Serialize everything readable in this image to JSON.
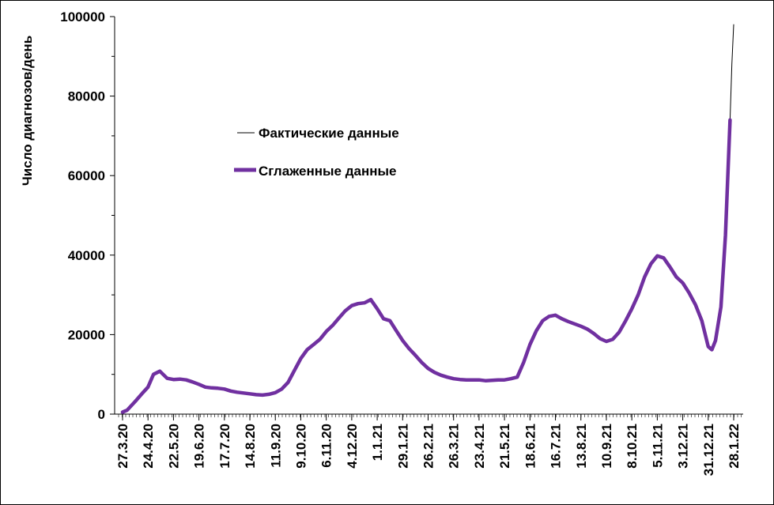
{
  "chart_data": {
    "type": "line",
    "ylabel": "Число диагнозов/день",
    "xlabel": "",
    "ylim": [
      0,
      100000
    ],
    "yticks": [
      0,
      20000,
      40000,
      60000,
      80000,
      100000
    ],
    "x_tick_labels": [
      "27.3.20",
      "24.4.20",
      "22.5.20",
      "19.6.20",
      "17.7.20",
      "14.8.20",
      "11.9.20",
      "9.10.20",
      "6.11.20",
      "4.12.20",
      "1.1.21",
      "29.1.21",
      "26.2.21",
      "26.3.21",
      "23.4.21",
      "21.5.21",
      "18.6.21",
      "16.7.21",
      "13.8.21",
      "10.9.21",
      "8.10.21",
      "5.11.21",
      "3.12.21",
      "31.12.21",
      "28.1.22"
    ],
    "x_start": "27.3.20",
    "x_end": "28.1.22",
    "grid": false,
    "legend": "left-upper-inside",
    "series": [
      {
        "name": "Фактические данные",
        "color": "#000000",
        "style": "thin",
        "points": [
          [
            "27.3.20",
            500
          ],
          [
            "1.4.20",
            800
          ],
          [
            "10.4.20",
            3500
          ],
          [
            "18.4.20",
            5500
          ],
          [
            "24.4.20",
            6500
          ],
          [
            "30.4.20",
            10000
          ],
          [
            "7.5.20",
            11000
          ],
          [
            "15.5.20",
            9000
          ],
          [
            "22.5.20",
            8800
          ],
          [
            "29.5.20",
            8900
          ],
          [
            "5.6.20",
            8600
          ],
          [
            "12.6.20",
            8200
          ],
          [
            "19.6.20",
            7500
          ],
          [
            "26.6.20",
            6800
          ],
          [
            "3.7.20",
            6700
          ],
          [
            "10.7.20",
            6600
          ],
          [
            "17.7.20",
            6400
          ],
          [
            "24.7.20",
            5900
          ],
          [
            "31.7.20",
            5600
          ],
          [
            "7.8.20",
            5300
          ],
          [
            "14.8.20",
            5100
          ],
          [
            "21.8.20",
            4900
          ],
          [
            "28.8.20",
            4800
          ],
          [
            "4.9.20",
            5000
          ],
          [
            "11.9.20",
            5300
          ],
          [
            "18.9.20",
            6200
          ],
          [
            "25.9.20",
            7500
          ],
          [
            "2.10.20",
            10500
          ],
          [
            "9.10.20",
            14000
          ],
          [
            "16.10.20",
            16000
          ],
          [
            "23.10.20",
            17500
          ],
          [
            "30.10.20",
            18500
          ],
          [
            "6.11.20",
            20500
          ],
          [
            "13.11.20",
            22000
          ],
          [
            "20.11.20",
            24000
          ],
          [
            "27.11.20",
            26000
          ],
          [
            "4.12.20",
            27500
          ],
          [
            "11.12.20",
            28000
          ],
          [
            "18.12.20",
            28200
          ],
          [
            "25.12.20",
            29000
          ],
          [
            "1.1.21",
            26000
          ],
          [
            "8.1.21",
            24000
          ],
          [
            "15.1.21",
            23500
          ],
          [
            "22.1.21",
            21000
          ],
          [
            "29.1.21",
            18500
          ],
          [
            "5.2.21",
            16500
          ],
          [
            "12.2.21",
            14800
          ],
          [
            "19.2.21",
            13000
          ],
          [
            "26.2.21",
            11500
          ],
          [
            "5.3.21",
            10500
          ],
          [
            "12.3.21",
            9800
          ],
          [
            "19.3.21",
            9300
          ],
          [
            "26.3.21",
            8900
          ],
          [
            "2.4.21",
            8700
          ],
          [
            "9.4.21",
            8600
          ],
          [
            "16.4.21",
            8700
          ],
          [
            "23.4.21",
            8600
          ],
          [
            "30.4.21",
            8400
          ],
          [
            "7.5.21",
            8600
          ],
          [
            "14.5.21",
            8700
          ],
          [
            "21.5.21",
            8600
          ],
          [
            "28.5.21",
            9000
          ],
          [
            "4.6.21",
            9200
          ],
          [
            "11.6.21",
            13000
          ],
          [
            "18.6.21",
            17500
          ],
          [
            "25.6.21",
            21000
          ],
          [
            "2.7.21",
            23500
          ],
          [
            "9.7.21",
            24800
          ],
          [
            "16.7.21",
            25000
          ],
          [
            "23.7.21",
            24000
          ],
          [
            "30.7.21",
            23300
          ],
          [
            "6.8.21",
            22700
          ],
          [
            "13.8.21",
            22100
          ],
          [
            "20.8.21",
            21400
          ],
          [
            "27.8.21",
            20300
          ],
          [
            "3.9.21",
            19000
          ],
          [
            "10.9.21",
            18300
          ],
          [
            "17.9.21",
            18800
          ],
          [
            "24.9.21",
            20700
          ],
          [
            "1.10.21",
            23500
          ],
          [
            "8.10.21",
            26500
          ],
          [
            "15.10.21",
            30000
          ],
          [
            "22.10.21",
            34500
          ],
          [
            "29.10.21",
            38000
          ],
          [
            "5.11.21",
            40000
          ],
          [
            "12.11.21",
            39500
          ],
          [
            "19.11.21",
            37000
          ],
          [
            "26.11.21",
            34500
          ],
          [
            "3.12.21",
            33000
          ],
          [
            "10.12.21",
            30500
          ],
          [
            "17.12.21",
            27500
          ],
          [
            "24.12.21",
            23500
          ],
          [
            "31.12.21",
            17000
          ],
          [
            "4.1.22",
            16000
          ],
          [
            "8.1.22",
            18000
          ],
          [
            "14.1.22",
            27000
          ],
          [
            "19.1.22",
            45000
          ],
          [
            "24.1.22",
            74000
          ],
          [
            "26.1.22",
            88000
          ],
          [
            "28.1.22",
            98000
          ]
        ]
      },
      {
        "name": "Сглаженные данные",
        "color": "#7030A0",
        "style": "thick",
        "points": [
          [
            "27.3.20",
            500
          ],
          [
            "1.4.20",
            1000
          ],
          [
            "10.4.20",
            3200
          ],
          [
            "18.4.20",
            5300
          ],
          [
            "24.4.20",
            6800
          ],
          [
            "30.4.20",
            10000
          ],
          [
            "7.5.20",
            10800
          ],
          [
            "15.5.20",
            9000
          ],
          [
            "22.5.20",
            8700
          ],
          [
            "29.5.20",
            8800
          ],
          [
            "5.6.20",
            8600
          ],
          [
            "12.6.20",
            8100
          ],
          [
            "19.6.20",
            7500
          ],
          [
            "26.6.20",
            6800
          ],
          [
            "3.7.20",
            6600
          ],
          [
            "10.7.20",
            6500
          ],
          [
            "17.7.20",
            6300
          ],
          [
            "24.7.20",
            5800
          ],
          [
            "31.7.20",
            5500
          ],
          [
            "7.8.20",
            5300
          ],
          [
            "14.8.20",
            5100
          ],
          [
            "21.8.20",
            4900
          ],
          [
            "28.8.20",
            4800
          ],
          [
            "4.9.20",
            5000
          ],
          [
            "11.9.20",
            5400
          ],
          [
            "18.9.20",
            6300
          ],
          [
            "25.9.20",
            8000
          ],
          [
            "2.10.20",
            11000
          ],
          [
            "9.10.20",
            14000
          ],
          [
            "16.10.20",
            16200
          ],
          [
            "23.10.20",
            17500
          ],
          [
            "30.10.20",
            18800
          ],
          [
            "6.11.20",
            20800
          ],
          [
            "13.11.20",
            22300
          ],
          [
            "20.11.20",
            24200
          ],
          [
            "27.11.20",
            26000
          ],
          [
            "4.12.20",
            27300
          ],
          [
            "11.12.20",
            27800
          ],
          [
            "18.12.20",
            28000
          ],
          [
            "25.12.20",
            28800
          ],
          [
            "1.1.21",
            26500
          ],
          [
            "8.1.21",
            24000
          ],
          [
            "15.1.21",
            23500
          ],
          [
            "22.1.21",
            21000
          ],
          [
            "29.1.21",
            18500
          ],
          [
            "5.2.21",
            16500
          ],
          [
            "12.2.21",
            14800
          ],
          [
            "19.2.21",
            13000
          ],
          [
            "26.2.21",
            11500
          ],
          [
            "5.3.21",
            10500
          ],
          [
            "12.3.21",
            9800
          ],
          [
            "19.3.21",
            9300
          ],
          [
            "26.3.21",
            8900
          ],
          [
            "2.4.21",
            8700
          ],
          [
            "9.4.21",
            8600
          ],
          [
            "16.4.21",
            8600
          ],
          [
            "23.4.21",
            8600
          ],
          [
            "30.4.21",
            8400
          ],
          [
            "7.5.21",
            8500
          ],
          [
            "14.5.21",
            8600
          ],
          [
            "21.5.21",
            8600
          ],
          [
            "28.5.21",
            8900
          ],
          [
            "4.6.21",
            9300
          ],
          [
            "11.6.21",
            13000
          ],
          [
            "18.6.21",
            17500
          ],
          [
            "25.6.21",
            21000
          ],
          [
            "2.7.21",
            23500
          ],
          [
            "9.7.21",
            24600
          ],
          [
            "16.7.21",
            24900
          ],
          [
            "23.7.21",
            24000
          ],
          [
            "30.7.21",
            23300
          ],
          [
            "6.8.21",
            22700
          ],
          [
            "13.8.21",
            22100
          ],
          [
            "20.8.21",
            21400
          ],
          [
            "27.8.21",
            20300
          ],
          [
            "3.9.21",
            19000
          ],
          [
            "10.9.21",
            18300
          ],
          [
            "17.9.21",
            18800
          ],
          [
            "24.9.21",
            20600
          ],
          [
            "1.10.21",
            23400
          ],
          [
            "8.10.21",
            26500
          ],
          [
            "15.10.21",
            30000
          ],
          [
            "22.10.21",
            34500
          ],
          [
            "29.10.21",
            37800
          ],
          [
            "5.11.21",
            39800
          ],
          [
            "12.11.21",
            39300
          ],
          [
            "19.11.21",
            37000
          ],
          [
            "26.11.21",
            34500
          ],
          [
            "3.12.21",
            33000
          ],
          [
            "10.12.21",
            30500
          ],
          [
            "17.12.21",
            27500
          ],
          [
            "24.12.21",
            23500
          ],
          [
            "31.12.21",
            17000
          ],
          [
            "4.1.22",
            16200
          ],
          [
            "8.1.22",
            18500
          ],
          [
            "14.1.22",
            27000
          ],
          [
            "19.1.22",
            45000
          ],
          [
            "24.1.22",
            74000
          ]
        ]
      }
    ]
  }
}
